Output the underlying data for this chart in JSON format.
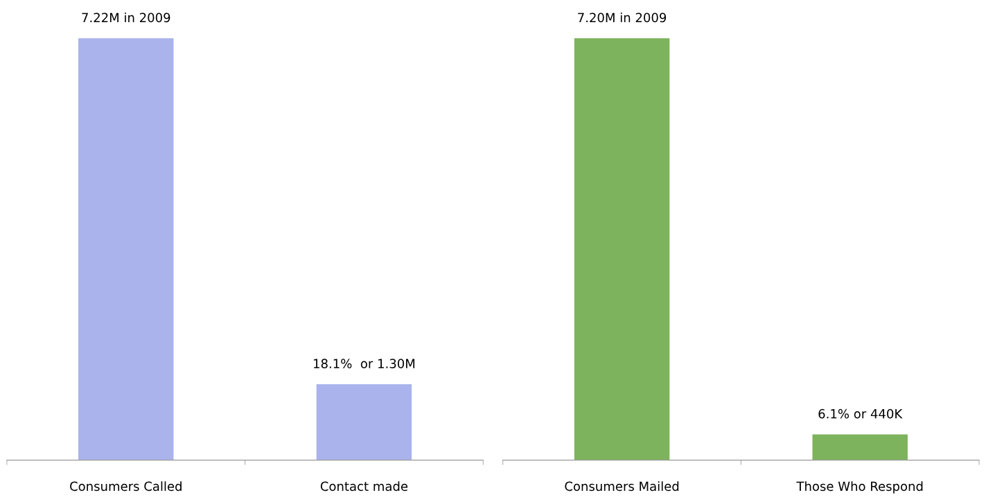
{
  "chart_data": [
    {
      "type": "bar",
      "categories": [
        "Consumers Called",
        "Contact made"
      ],
      "values": [
        7220000,
        1300000
      ],
      "color": "#aab3ec",
      "value_labels": [
        "7.22M in 2009",
        "18.1%  or 1.30M"
      ],
      "tick_labels": "x",
      "grid": false,
      "legend": false
    },
    {
      "type": "bar",
      "categories": [
        "Consumers Mailed",
        "Those Who Respond"
      ],
      "values": [
        7200000,
        440000
      ],
      "color": "#7db35c",
      "value_labels": [
        "7.20M in 2009",
        "6.1% or 440K"
      ],
      "tick_labels": "x",
      "grid": false,
      "legend": false
    }
  ]
}
